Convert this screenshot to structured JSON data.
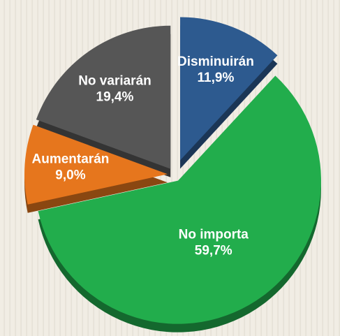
{
  "chart_data": {
    "type": "pie",
    "categories": [
      "Disminuirán",
      "No importa",
      "Aumentarán",
      "No variarán"
    ],
    "values": [
      11.9,
      59.7,
      9.0,
      19.4
    ],
    "value_labels": [
      "11,9%",
      "59,7%",
      "9,0%",
      "19,4%"
    ],
    "colors": [
      "#2d5a8f",
      "#22ad4c",
      "#e6761d",
      "#565656"
    ]
  }
}
